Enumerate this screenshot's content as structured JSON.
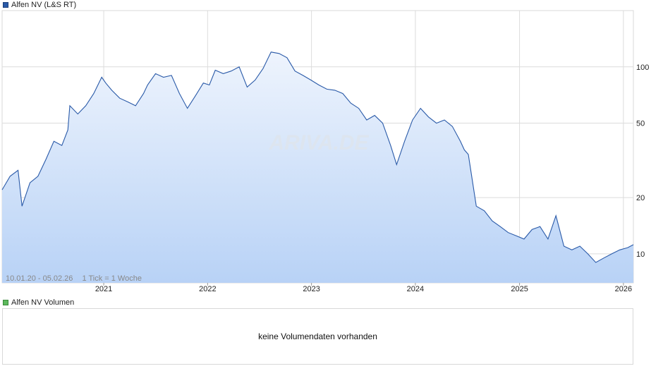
{
  "legend": {
    "price_label": "Alfen NV (L&S RT)",
    "price_color": "#2a5aa8",
    "volume_label": "Alfen NV Volumen",
    "volume_color": "#5cb85c"
  },
  "watermark": "ARIVA.DE",
  "range_info": "10.01.20 - 05.02.26",
  "tick_info": "1 Tick = 1 Woche",
  "volume_message": "keine Volumendaten vorhanden",
  "chart_data": {
    "type": "area",
    "y_scale": "log",
    "ylim": [
      7,
      200
    ],
    "y_ticks": [
      10,
      20,
      50,
      100
    ],
    "x_range": [
      "2020-01-10",
      "2026-02-05"
    ],
    "x_ticks": [
      {
        "label": "2021",
        "date": "2021-01-01"
      },
      {
        "label": "2022",
        "date": "2022-01-01"
      },
      {
        "label": "2023",
        "date": "2023-01-01"
      },
      {
        "label": "2024",
        "date": "2024-01-01"
      },
      {
        "label": "2025",
        "date": "2025-01-01"
      },
      {
        "label": "2026",
        "date": "2026-01-01"
      }
    ],
    "grid": true,
    "line_color": "#2a5aa8",
    "fill_top_color": "#eef4fd",
    "fill_bottom_color": "#b8d2f6",
    "series": [
      {
        "x": [
          "2020-01-10",
          "2020-02-07",
          "2020-03-06",
          "2020-03-20",
          "2020-04-17",
          "2020-05-15",
          "2020-06-12",
          "2020-07-10",
          "2020-08-07",
          "2020-08-28",
          "2020-09-04",
          "2020-10-02",
          "2020-10-30",
          "2020-11-27",
          "2020-12-25",
          "2021-01-08",
          "2021-01-29",
          "2021-02-26",
          "2021-03-26",
          "2021-04-23",
          "2021-05-21",
          "2021-06-04",
          "2021-07-02",
          "2021-07-30",
          "2021-08-27",
          "2021-09-24",
          "2021-10-22",
          "2021-11-19",
          "2021-12-17",
          "2022-01-07",
          "2022-01-28",
          "2022-02-25",
          "2022-03-25",
          "2022-04-22",
          "2022-05-20",
          "2022-06-17",
          "2022-07-15",
          "2022-08-12",
          "2022-09-09",
          "2022-10-07",
          "2022-11-04",
          "2022-12-02",
          "2022-12-30",
          "2023-01-27",
          "2023-02-24",
          "2023-03-24",
          "2023-04-21",
          "2023-05-19",
          "2023-06-16",
          "2023-07-14",
          "2023-08-11",
          "2023-09-08",
          "2023-10-06",
          "2023-10-27",
          "2023-11-24",
          "2023-12-22",
          "2024-01-19",
          "2024-02-16",
          "2024-03-15",
          "2024-04-12",
          "2024-05-10",
          "2024-06-07",
          "2024-06-21",
          "2024-07-05",
          "2024-08-02",
          "2024-08-30",
          "2024-09-27",
          "2024-10-25",
          "2024-11-22",
          "2024-12-20",
          "2025-01-17",
          "2025-02-14",
          "2025-03-14",
          "2025-04-11",
          "2025-05-09",
          "2025-06-06",
          "2025-07-04",
          "2025-08-01",
          "2025-08-29",
          "2025-09-26",
          "2025-10-24",
          "2025-11-21",
          "2025-12-19",
          "2026-01-16",
          "2026-02-05"
        ],
        "values": [
          22,
          26,
          28,
          18,
          24,
          26,
          32,
          40,
          38,
          46,
          62,
          56,
          62,
          72,
          88,
          82,
          75,
          68,
          65,
          62,
          72,
          80,
          92,
          88,
          90,
          72,
          60,
          70,
          82,
          80,
          96,
          92,
          95,
          100,
          78,
          85,
          98,
          120,
          118,
          112,
          95,
          90,
          85,
          80,
          76,
          75,
          72,
          64,
          60,
          52,
          55,
          50,
          38,
          30,
          40,
          52,
          60,
          54,
          50,
          52,
          48,
          40,
          36,
          34,
          18,
          17,
          15,
          14,
          13,
          12.5,
          12,
          13.5,
          14,
          12,
          16,
          11,
          10.5,
          11,
          10,
          9,
          9.5,
          10,
          10.5,
          10.8,
          11.2
        ]
      }
    ]
  }
}
